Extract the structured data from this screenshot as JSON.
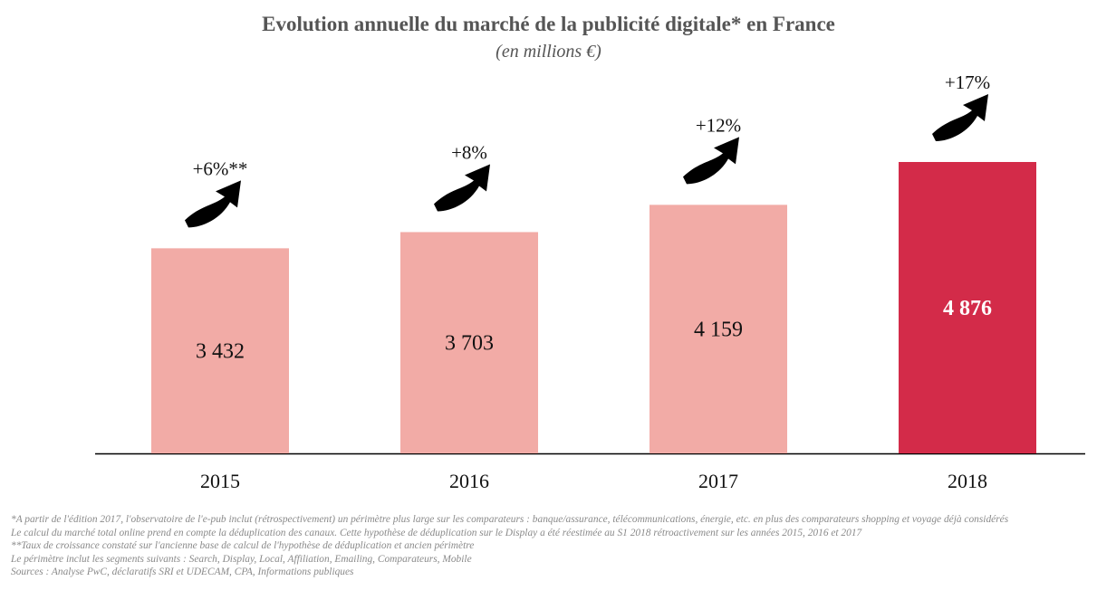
{
  "chart_data": {
    "type": "bar",
    "title": "Evolution annuelle du marché de la publicité digitale* en France",
    "subtitle": "(en millions €)",
    "categories": [
      "2015",
      "2016",
      "2017",
      "2018"
    ],
    "values": [
      3432,
      3703,
      4159,
      4876
    ],
    "value_labels": [
      "3 432",
      "3 703",
      "4 159",
      "4 876"
    ],
    "growth_labels": [
      "+6%**",
      "+8%",
      "+12%",
      "+17%"
    ],
    "colors": [
      "#f2aba6",
      "#f2aba6",
      "#f2aba6",
      "#d32b49"
    ],
    "value_label_colors": [
      "#111111",
      "#111111",
      "#111111",
      "#ffffff"
    ],
    "grid": false,
    "legend": "none"
  },
  "notes": [
    "*A partir de l'édition 2017, l'observatoire de l'e-pub inclut (rétrospectivement) un périmètre plus large sur les comparateurs : banque/assurance, télécommunications, énergie, etc. en plus des comparateurs shopping et voyage déjà considérés",
    "Le calcul du marché total online prend en compte la déduplication des canaux. Cette hypothèse de déduplication sur le Display a été réestimée au S1 2018 rétroactivement sur les années 2015, 2016 et 2017",
    "**Taux de croissance constaté sur l'ancienne base de calcul de l'hypothèse de déduplication et ancien périmètre",
    "Le périmètre inclut les segments suivants : Search, Display, Local, Affiliation, Emailing, Comparateurs, Mobile",
    "Sources : Analyse PwC, déclaratifs SRI et UDECAM, CPA, Informations publiques"
  ]
}
